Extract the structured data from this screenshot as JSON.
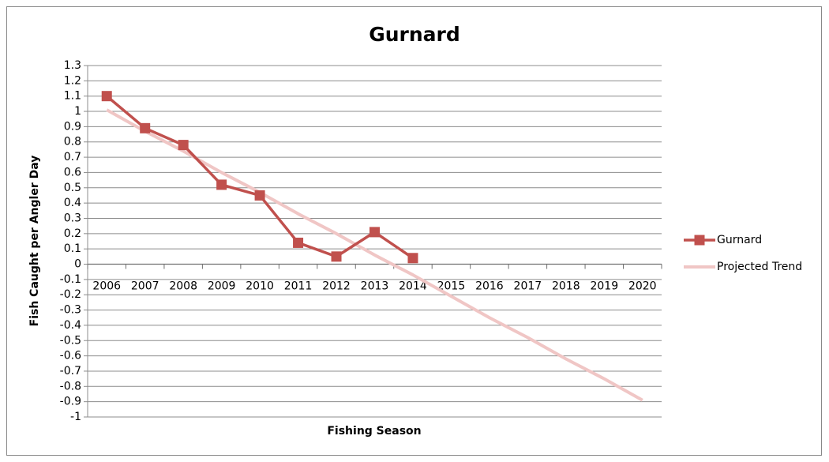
{
  "chart_data": {
    "type": "line",
    "title": "Gurnard",
    "x_label": "Fishing Season",
    "y_label": "Fish Caught per Angler Day",
    "categories": [
      "2006",
      "2007",
      "2008",
      "2009",
      "2010",
      "2011",
      "2012",
      "2013",
      "2014",
      "2015",
      "2016",
      "2017",
      "2018",
      "2019",
      "2020"
    ],
    "series": [
      {
        "name": "Gurnard",
        "color": "#c0504d",
        "marker": "square",
        "values": [
          1.1,
          0.89,
          0.78,
          0.52,
          0.45,
          0.14,
          0.05,
          0.21,
          0.04,
          null,
          null,
          null,
          null,
          null,
          null
        ]
      },
      {
        "name": "Projected Trend",
        "color": "#f0c6c5",
        "marker": "none",
        "values": [
          1.01,
          0.87,
          0.74,
          0.6,
          0.47,
          0.33,
          0.2,
          0.06,
          -0.07,
          -0.21,
          -0.35,
          -0.48,
          -0.62,
          -0.75,
          -0.89
        ]
      }
    ],
    "ylim": [
      -1,
      1.3
    ],
    "yticks": [
      -1,
      -0.9,
      -0.8,
      -0.7,
      -0.6,
      -0.5,
      -0.4,
      -0.3,
      -0.2,
      -0.1,
      0,
      0.1,
      0.2,
      0.3,
      0.4,
      0.5,
      0.6,
      0.7,
      0.8,
      0.9,
      1,
      1.1,
      1.2,
      1.3
    ],
    "grid": true,
    "legend": "right"
  }
}
